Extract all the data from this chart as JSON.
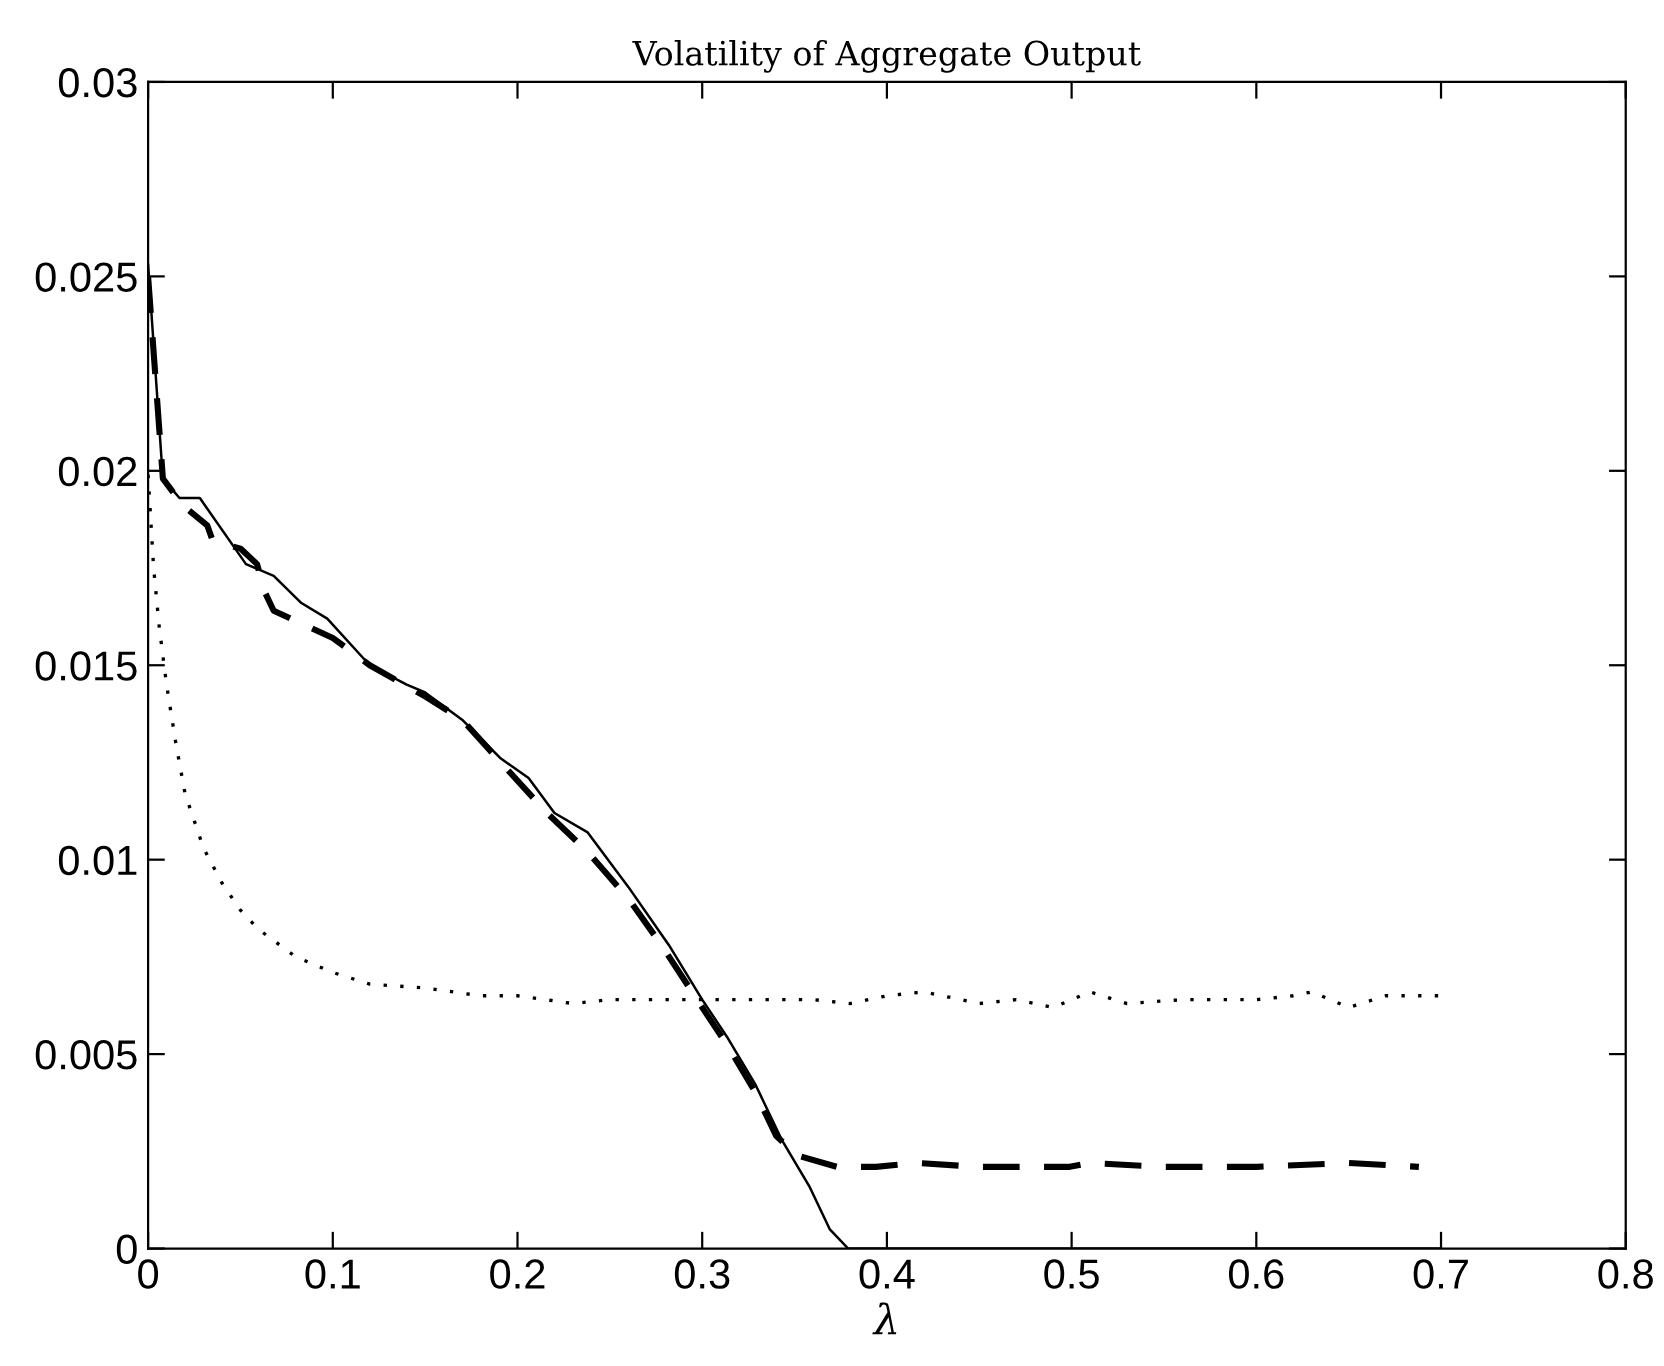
{
  "chart_data": {
    "type": "line",
    "title": "Volatility of Aggregate Output",
    "xlabel": "λ",
    "xlim": [
      0,
      0.8
    ],
    "ylim": [
      0,
      0.03
    ],
    "xticks": [
      0,
      0.1,
      0.2,
      0.3,
      0.4,
      0.5,
      0.6,
      0.7,
      0.8
    ],
    "yticks": [
      0,
      0.005,
      0.01,
      0.015,
      0.02,
      0.025,
      0.03
    ],
    "grid": false,
    "legend": false,
    "marker": "none",
    "series": [
      {
        "color": "#000000",
        "line_style": "solid",
        "x": [
          0,
          0.008,
          0.017,
          0.028,
          0.053,
          0.068,
          0.083,
          0.097,
          0.12,
          0.14,
          0.15,
          0.17,
          0.191,
          0.206,
          0.22,
          0.238,
          0.26,
          0.282,
          0.3,
          0.314,
          0.329,
          0.343,
          0.358,
          0.369,
          0.379,
          0.5,
          0.7
        ],
        "values": [
          0.0253,
          0.0198,
          0.0193,
          0.0193,
          0.0176,
          0.0173,
          0.0166,
          0.0162,
          0.015,
          0.0145,
          0.0143,
          0.0136,
          0.0126,
          0.0121,
          0.0112,
          0.0107,
          0.0093,
          0.0078,
          0.0064,
          0.0054,
          0.0042,
          0.0028,
          0.0016,
          0.0005,
          0,
          0,
          0
        ]
      },
      {
        "color": "#000000",
        "line_style": "dashed",
        "x": [
          0,
          0.008,
          0.019,
          0.032,
          0.035,
          0.05,
          0.059,
          0.063,
          0.068,
          0.1,
          0.12,
          0.15,
          0.17,
          0.191,
          0.216,
          0.238,
          0.26,
          0.278,
          0.3,
          0.314,
          0.329,
          0.34,
          0.351,
          0.373,
          0.394,
          0.416,
          0.45,
          0.499,
          0.51,
          0.55,
          0.6,
          0.65,
          0.688
        ],
        "values": [
          0.025,
          0.0198,
          0.0191,
          0.0186,
          0.0182,
          0.018,
          0.0176,
          0.0169,
          0.0164,
          0.0157,
          0.015,
          0.0142,
          0.0136,
          0.0125,
          0.0112,
          0.0102,
          0.009,
          0.0078,
          0.0062,
          0.0052,
          0.004,
          0.0029,
          0.0024,
          0.0021,
          0.0021,
          0.0022,
          0.0021,
          0.0021,
          0.0022,
          0.0021,
          0.0021,
          0.0022,
          0.0021
        ]
      },
      {
        "color": "#000000",
        "line_style": "dotted",
        "x": [
          0,
          0.003,
          0.006,
          0.01,
          0.015,
          0.02,
          0.03,
          0.04,
          0.05,
          0.06,
          0.08,
          0.1,
          0.12,
          0.15,
          0.18,
          0.2,
          0.23,
          0.25,
          0.28,
          0.3,
          0.33,
          0.36,
          0.38,
          0.4,
          0.42,
          0.45,
          0.47,
          0.49,
          0.51,
          0.53,
          0.56,
          0.58,
          0.6,
          0.62,
          0.63,
          0.65,
          0.67,
          0.7
        ],
        "values": [
          0.0199,
          0.0175,
          0.016,
          0.0145,
          0.013,
          0.0117,
          0.0103,
          0.0094,
          0.0087,
          0.0082,
          0.0075,
          0.0071,
          0.0068,
          0.0067,
          0.0065,
          0.0065,
          0.0063,
          0.0064,
          0.0064,
          0.0064,
          0.0064,
          0.0064,
          0.0063,
          0.0065,
          0.0066,
          0.0063,
          0.0064,
          0.0062,
          0.0066,
          0.0063,
          0.0064,
          0.0064,
          0.0064,
          0.0065,
          0.0066,
          0.0062,
          0.0065,
          0.0065
        ]
      }
    ]
  }
}
